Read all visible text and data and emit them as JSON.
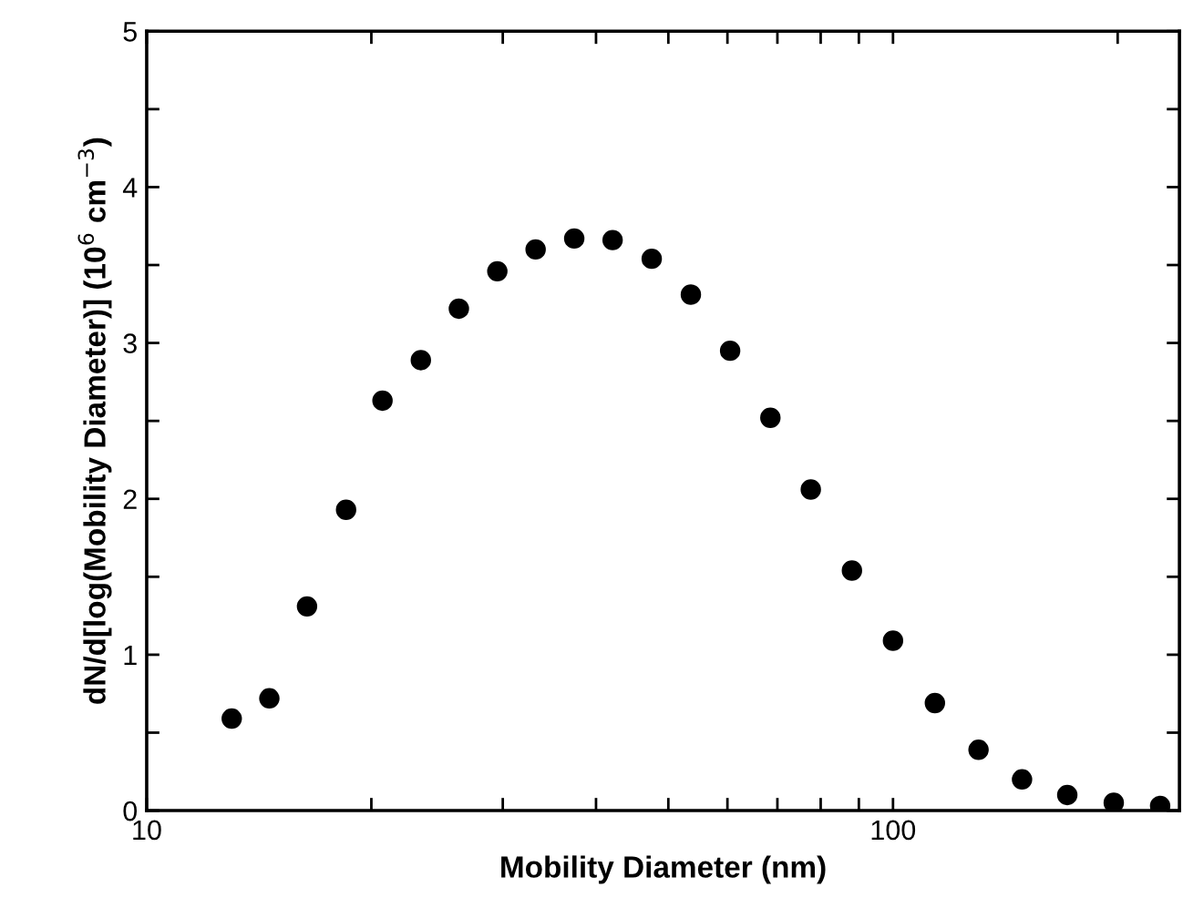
{
  "chart_data": {
    "type": "scatter",
    "xlabel": "Mobility Diameter (nm)",
    "ylabel": "dN/d[log(Mobility Diameter)] (10$^{6}$ cm$^{−3}$)",
    "log": "x",
    "marker": "circle",
    "grid": false,
    "legend": false,
    "x": [
      13.0,
      14.6,
      16.4,
      18.5,
      20.7,
      23.3,
      26.2,
      29.5,
      33.2,
      37.4,
      42.1,
      47.5,
      53.6,
      60.5,
      68.5,
      77.6,
      88.1,
      100,
      113.8,
      130.2,
      148.9,
      171.2,
      197.6,
      228
    ],
    "series": [
      {
        "color": "#000000",
        "values": [
          0.59,
          0.72,
          1.31,
          1.93,
          2.63,
          2.89,
          3.22,
          3.46,
          3.6,
          3.67,
          3.66,
          3.54,
          3.31,
          2.95,
          2.52,
          2.06,
          1.54,
          1.09,
          0.69,
          0.39,
          0.2,
          0.1,
          0.05,
          0.03
        ]
      }
    ],
    "xlim": [
      10,
      242
    ],
    "xticks": [
      10,
      {
        "value": 20,
        "label": null
      },
      {
        "value": 30,
        "label": null
      },
      {
        "value": 40,
        "label": null
      },
      {
        "value": 50,
        "label": null
      },
      {
        "value": 60,
        "label": null
      },
      {
        "value": 70,
        "label": null
      },
      {
        "value": 80,
        "label": null
      },
      {
        "value": 90,
        "label": null
      },
      100,
      {
        "value": 200,
        "label": null
      }
    ],
    "ylim": [
      0,
      5
    ],
    "yticks": [
      0,
      {
        "value": 0.5,
        "label": null
      },
      1,
      {
        "value": 1.5,
        "label": null
      },
      2,
      {
        "value": 2.5,
        "label": null
      },
      3,
      {
        "value": 3.5,
        "label": null
      },
      4,
      {
        "value": 4.5,
        "label": null
      },
      5
    ]
  }
}
